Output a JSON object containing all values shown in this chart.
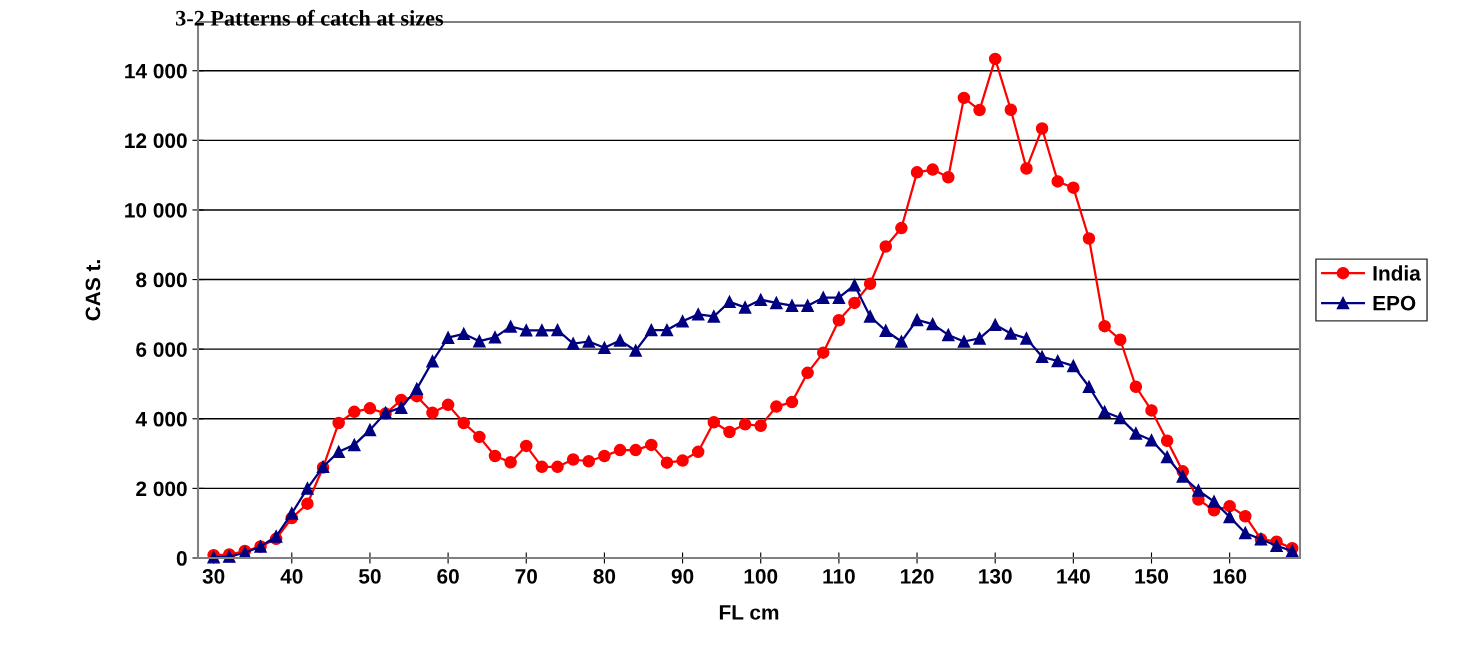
{
  "chart_data": {
    "type": "line",
    "title": "3-2 Patterns of catch at sizes",
    "xlabel": "FL cm",
    "ylabel": "CAS t.",
    "x": [
      30,
      32,
      34,
      36,
      38,
      40,
      42,
      44,
      46,
      48,
      50,
      52,
      54,
      56,
      58,
      60,
      62,
      64,
      66,
      68,
      70,
      72,
      74,
      76,
      78,
      80,
      82,
      84,
      86,
      88,
      90,
      92,
      94,
      96,
      98,
      100,
      102,
      104,
      106,
      108,
      110,
      112,
      114,
      116,
      118,
      120,
      122,
      124,
      126,
      128,
      130,
      132,
      134,
      136,
      138,
      140,
      142,
      144,
      146,
      148,
      150,
      152,
      154,
      156,
      158,
      160,
      162,
      164,
      166,
      168
    ],
    "series": [
      {
        "name": "India",
        "color": "#ff0000",
        "marker": "circle",
        "values": [
          80,
          100,
          200,
          330,
          550,
          1150,
          1560,
          2600,
          3880,
          4200,
          4300,
          4150,
          4540,
          4650,
          4170,
          4400,
          3880,
          3480,
          2930,
          2750,
          3220,
          2620,
          2620,
          2830,
          2780,
          2930,
          3100,
          3100,
          3250,
          2740,
          2800,
          3050,
          3900,
          3620,
          3840,
          3800,
          4350,
          4480,
          5320,
          5900,
          6830,
          7330,
          7880,
          8950,
          9480,
          11080,
          11160,
          10940,
          13220,
          12870,
          14340,
          12880,
          11190,
          12340,
          10820,
          10640,
          9180,
          6660,
          6270,
          4920,
          4240,
          3370,
          2490,
          1680,
          1370,
          1490,
          1200,
          540,
          470,
          280
        ]
      },
      {
        "name": "EPO",
        "color": "#000080",
        "marker": "triangle",
        "values": [
          20,
          40,
          150,
          330,
          620,
          1280,
          2000,
          2620,
          3050,
          3250,
          3680,
          4170,
          4320,
          4860,
          5650,
          6330,
          6440,
          6230,
          6340,
          6650,
          6540,
          6540,
          6550,
          6160,
          6220,
          6040,
          6250,
          5960,
          6550,
          6550,
          6800,
          7000,
          6940,
          7360,
          7200,
          7420,
          7330,
          7250,
          7250,
          7480,
          7480,
          7840,
          6940,
          6530,
          6220,
          6840,
          6720,
          6410,
          6220,
          6310,
          6700,
          6450,
          6310,
          5780,
          5660,
          5520,
          4920,
          4200,
          4020,
          3580,
          3380,
          2900,
          2340,
          1940,
          1620,
          1180,
          720,
          540,
          350,
          200
        ]
      }
    ],
    "xlim": [
      28,
      169
    ],
    "xticks": [
      30,
      40,
      50,
      60,
      70,
      80,
      90,
      100,
      110,
      120,
      130,
      140,
      150,
      160
    ],
    "ylim": [
      0,
      15400
    ],
    "yticks": [
      0,
      {
        "value": 2000,
        "label": "2 000"
      },
      {
        "value": 4000,
        "label": "4 000"
      },
      {
        "value": 6000,
        "label": "6 000"
      },
      {
        "value": 8000,
        "label": "8 000"
      },
      {
        "value": 10000,
        "label": "10 000"
      },
      {
        "value": 12000,
        "label": "12 000"
      },
      {
        "value": 14000,
        "label": "14 000"
      }
    ],
    "grid": "y",
    "legend": "right",
    "line_style": "solid"
  }
}
